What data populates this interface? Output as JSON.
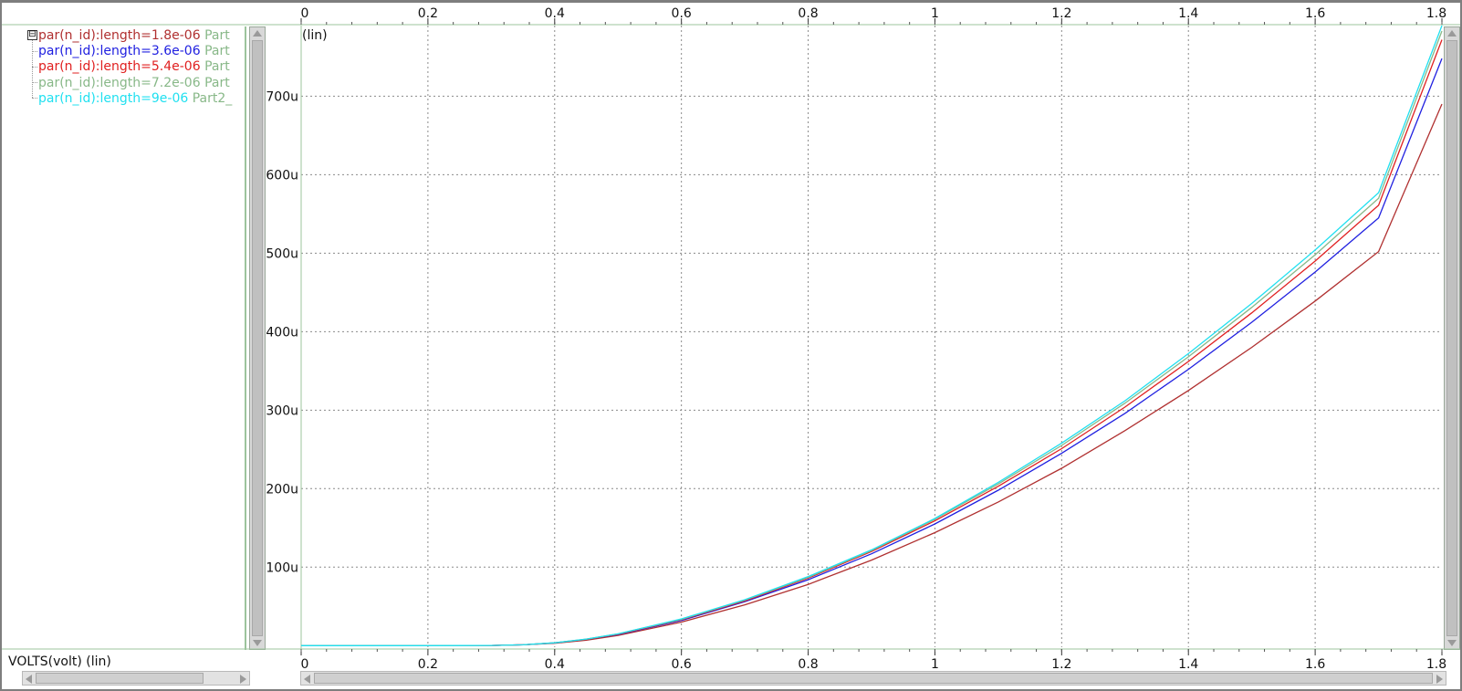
{
  "legend": {
    "items": [
      {
        "label": "par(n_id):length=1.8e-06",
        "part": "Part",
        "color": "#b03030"
      },
      {
        "label": "par(n_id):length=3.6e-06",
        "part": "Part",
        "color": "#2020e0"
      },
      {
        "label": "par(n_id):length=5.4e-06",
        "part": "Part",
        "color": "#e02020"
      },
      {
        "label": "par(n_id):length=7.2e-06",
        "part": "Part",
        "color": "#88b888"
      },
      {
        "label": "par(n_id):length=9e-06",
        "part": "Part2_",
        "color": "#20e0f0"
      }
    ],
    "collapse_symbol": "⊟"
  },
  "y_scale_label": "(lin)",
  "x_axis_label": "VOLTS(volt) (lin)",
  "chart_data": {
    "type": "line",
    "x_ticks": [
      "0",
      "0.2",
      "0.4",
      "0.6",
      "0.8",
      "1",
      "1.2",
      "1.4",
      "1.6",
      "1.8"
    ],
    "y_ticks": [
      "100u",
      "200u",
      "300u",
      "400u",
      "500u",
      "600u",
      "700u"
    ],
    "xlim": [
      0,
      1.8
    ],
    "ylim": [
      -2,
      790
    ],
    "y_unit": "u",
    "grid": true,
    "legend_position": "left-panel",
    "x": [
      0,
      0.1,
      0.2,
      0.3,
      0.35,
      0.4,
      0.45,
      0.5,
      0.6,
      0.7,
      0.8,
      0.9,
      1.0,
      1.1,
      1.2,
      1.3,
      1.4,
      1.5,
      1.6,
      1.7,
      1.8
    ],
    "series": [
      {
        "name": "par(n_id):length=1.8e-06",
        "color": "#b03030",
        "values": [
          0,
          0,
          0,
          0.2,
          1,
          3,
          7,
          13,
          30,
          52,
          78,
          109,
          144,
          183,
          226,
          274,
          325,
          380,
          439,
          502,
          690
        ]
      },
      {
        "name": "par(n_id):length=3.6e-06",
        "color": "#2020e0",
        "values": [
          0,
          0,
          0,
          0.2,
          1,
          3.5,
          8,
          14,
          32,
          56,
          84,
          117,
          155,
          198,
          245,
          296,
          352,
          412,
          476,
          545,
          748
        ]
      },
      {
        "name": "par(n_id):length=5.4e-06",
        "color": "#e02020",
        "values": [
          0,
          0,
          0,
          0.2,
          1,
          3.5,
          8,
          14.5,
          33,
          57,
          86,
          120,
          159,
          203,
          251,
          304,
          362,
          424,
          490,
          561,
          772
        ]
      },
      {
        "name": "par(n_id):length=7.2e-06",
        "color": "#88b888",
        "values": [
          0,
          0,
          0,
          0.2,
          1,
          3.6,
          8.2,
          15,
          33.5,
          58,
          87,
          121,
          161,
          206,
          255,
          309,
          368,
          431,
          498,
          570,
          783
        ]
      },
      {
        "name": "par(n_id):length=9e-06",
        "color": "#20e0f0",
        "values": [
          0,
          0,
          0,
          0.2,
          1,
          3.6,
          8.3,
          15,
          34,
          58.5,
          88,
          122,
          162,
          208,
          258,
          312,
          372,
          436,
          504,
          577,
          790
        ]
      }
    ]
  }
}
